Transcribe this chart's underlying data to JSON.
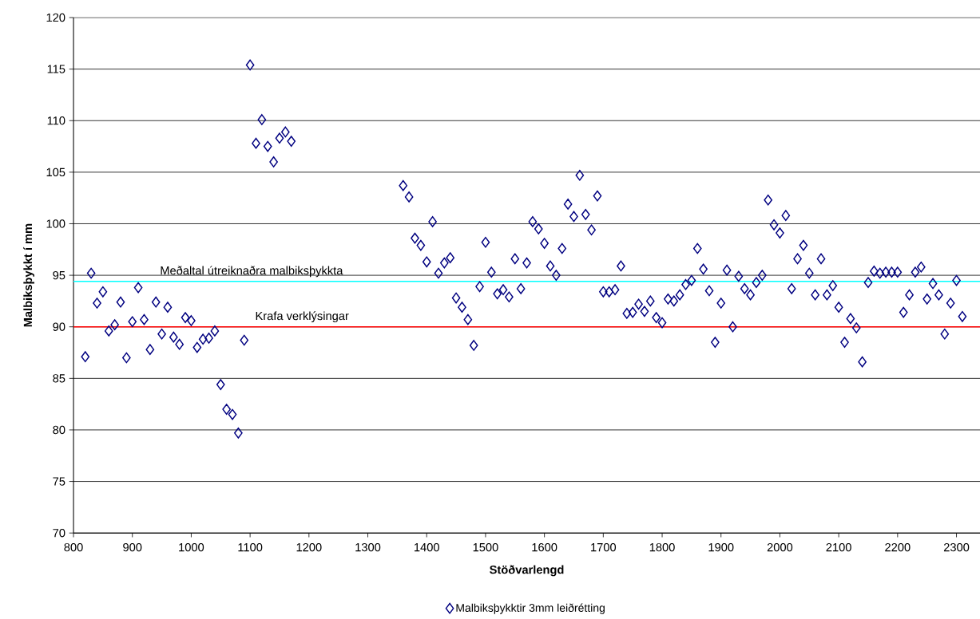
{
  "chart_data": {
    "type": "scatter",
    "xlabel": "Stöðvarlengd",
    "ylabel": "Malbiksþykkt í mm",
    "xlim": [
      800,
      2340
    ],
    "xticks": [
      800,
      900,
      1000,
      1100,
      1200,
      1300,
      1400,
      1500,
      1600,
      1700,
      1800,
      1900,
      2000,
      2100,
      2200,
      2300
    ],
    "ylim": [
      70,
      120
    ],
    "yticks": [
      70,
      75,
      80,
      85,
      90,
      95,
      100,
      105,
      110,
      115,
      120
    ],
    "grid": "y",
    "legend": "bottom",
    "marker": "diamond",
    "series": [
      {
        "name": "Malbiksþykktir 3mm leiðrétting",
        "color": "#000080",
        "x": [
          820,
          830,
          840,
          850,
          860,
          870,
          880,
          890,
          900,
          910,
          920,
          930,
          940,
          950,
          960,
          970,
          980,
          990,
          1000,
          1010,
          1020,
          1030,
          1040,
          1050,
          1060,
          1070,
          1080,
          1090,
          1100,
          1110,
          1120,
          1130,
          1140,
          1150,
          1160,
          1170,
          1360,
          1370,
          1380,
          1390,
          1400,
          1410,
          1420,
          1430,
          1440,
          1450,
          1460,
          1470,
          1480,
          1490,
          1500,
          1510,
          1520,
          1530,
          1540,
          1550,
          1560,
          1570,
          1580,
          1590,
          1600,
          1610,
          1620,
          1630,
          1640,
          1650,
          1660,
          1670,
          1680,
          1690,
          1700,
          1710,
          1720,
          1730,
          1740,
          1750,
          1760,
          1770,
          1780,
          1790,
          1800,
          1810,
          1820,
          1830,
          1840,
          1850,
          1860,
          1870,
          1880,
          1890,
          1900,
          1910,
          1920,
          1930,
          1940,
          1950,
          1960,
          1970,
          1980,
          1990,
          2000,
          2010,
          2020,
          2030,
          2040,
          2050,
          2060,
          2070,
          2080,
          2090,
          2100,
          2110,
          2120,
          2130,
          2140,
          2150,
          2160,
          2170,
          2180,
          2190,
          2200,
          2210,
          2220,
          2230,
          2240,
          2250,
          2260,
          2270,
          2280,
          2290,
          2300,
          2310
        ],
        "values": [
          87.1,
          95.2,
          92.3,
          93.4,
          89.6,
          90.2,
          92.4,
          87.0,
          90.5,
          93.8,
          90.7,
          87.8,
          92.4,
          89.3,
          91.9,
          89.0,
          88.3,
          90.9,
          90.6,
          88.0,
          88.8,
          88.9,
          89.6,
          84.4,
          82.0,
          81.5,
          79.7,
          88.7,
          115.4,
          107.8,
          110.1,
          107.5,
          106.0,
          108.3,
          108.9,
          108.0,
          103.7,
          102.6,
          98.6,
          97.9,
          96.3,
          100.2,
          95.2,
          96.2,
          96.7,
          92.8,
          91.9,
          90.7,
          88.2,
          93.9,
          98.2,
          95.3,
          93.2,
          93.6,
          92.9,
          96.6,
          93.7,
          96.2,
          100.2,
          99.5,
          98.1,
          95.9,
          95.0,
          97.6,
          101.9,
          100.7,
          104.7,
          100.9,
          99.4,
          102.7,
          93.4,
          93.4,
          93.6,
          95.9,
          91.3,
          91.4,
          92.2,
          91.5,
          92.5,
          90.9,
          90.4,
          92.7,
          92.5,
          93.1,
          94.1,
          94.5,
          97.6,
          95.6,
          93.5,
          88.5,
          92.3,
          95.5,
          90.0,
          94.9,
          93.7,
          93.1,
          94.3,
          95.0,
          102.3,
          99.9,
          99.1,
          100.8,
          93.7,
          96.6,
          97.9,
          95.2,
          93.1,
          96.6,
          93.1,
          94.0,
          91.9,
          88.5,
          90.8,
          89.9,
          86.6,
          94.3,
          95.4,
          95.2,
          95.3,
          95.3,
          95.3,
          91.4,
          93.1,
          95.3,
          95.8,
          92.7,
          94.2,
          93.1,
          89.3,
          92.3,
          94.5,
          91.0
        ]
      }
    ],
    "ref_lines": [
      {
        "axis": "y",
        "value": 94.4,
        "label": "Meðaltal útreiknaðra malbiksþykkta",
        "color": "#00ffff"
      },
      {
        "axis": "y",
        "value": 90,
        "label": "Krafa verklýsingar",
        "color": "#ff0000"
      }
    ]
  }
}
